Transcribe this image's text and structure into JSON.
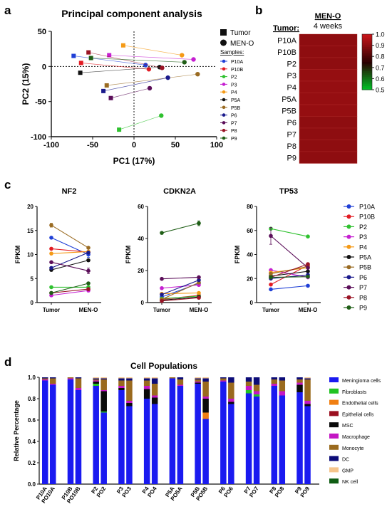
{
  "panel_labels": {
    "a": "a",
    "b": "b",
    "c": "c",
    "d": "d"
  },
  "colors": {
    "P10A": "#1f3fd6",
    "P10B": "#e21b23",
    "P2": "#2fc12f",
    "P3": "#c51fd1",
    "P4": "#f59a16",
    "P5A": "#111111",
    "P5B": "#9a6b22",
    "P6": "#1a1a8c",
    "P7": "#5b0e59",
    "P8": "#9a1425",
    "P9": "#1f5e16"
  },
  "chart_data": [
    {
      "type": "scatter",
      "title": "Principal component analysis",
      "xlabel": "PC1 (17%)",
      "ylabel": "PC2 (15%)",
      "xlim": [
        -100,
        100
      ],
      "ylim": [
        -100,
        50
      ],
      "xticks": [
        -100,
        -50,
        0,
        50,
        100
      ],
      "yticks": [
        -100,
        -50,
        0,
        50
      ],
      "legend_markers": {
        "tumor": "Tumor",
        "meno": "MEN-O"
      },
      "legend_title": "Samples:",
      "legend_placement": "right",
      "series": [
        {
          "name": "P10A",
          "tumor": [
            -73,
            15
          ],
          "meno": [
            14,
            2
          ]
        },
        {
          "name": "P10B",
          "tumor": [
            -64,
            5
          ],
          "meno": [
            18,
            -4
          ]
        },
        {
          "name": "P2",
          "tumor": [
            -18,
            -90
          ],
          "meno": [
            33,
            -70
          ]
        },
        {
          "name": "P3",
          "tumor": [
            -30,
            16
          ],
          "meno": [
            72,
            10
          ]
        },
        {
          "name": "P4",
          "tumor": [
            -13,
            30
          ],
          "meno": [
            58,
            16
          ]
        },
        {
          "name": "P5A",
          "tumor": [
            -65,
            -9
          ],
          "meno": [
            31,
            -1
          ]
        },
        {
          "name": "P5B",
          "tumor": [
            -33,
            -27
          ],
          "meno": [
            77,
            -11
          ]
        },
        {
          "name": "P6",
          "tumor": [
            -37,
            -35
          ],
          "meno": [
            41,
            -16
          ]
        },
        {
          "name": "P7",
          "tumor": [
            -28,
            -45
          ],
          "meno": [
            19,
            -31
          ]
        },
        {
          "name": "P8",
          "tumor": [
            -55,
            20
          ],
          "meno": [
            34,
            -2
          ]
        },
        {
          "name": "P9",
          "tumor": [
            -52,
            12
          ],
          "meno": [
            61,
            6
          ]
        }
      ]
    },
    {
      "type": "heatmap",
      "column_header": "MEN-O",
      "column_subheader": "4 weeks",
      "row_header": "Tumor:",
      "rows": [
        "P10A",
        "P10B",
        "P2",
        "P3",
        "P4",
        "P5A",
        "P5B",
        "P6",
        "P7",
        "P8",
        "P9"
      ],
      "values": [
        0.91,
        0.91,
        0.91,
        0.92,
        0.92,
        0.92,
        0.92,
        0.91,
        0.91,
        0.91,
        0.91
      ],
      "colorbar_ticks": [
        1.0,
        0.9,
        0.8,
        0.7,
        0.6,
        0.5
      ],
      "colorbar_tick_labels": [
        "1.0",
        "0.9",
        "0.8",
        "0.7",
        "0.6",
        "0.5"
      ],
      "range": [
        0.5,
        1.0
      ]
    },
    {
      "type": "line",
      "title": "NF2",
      "ylabel": "FPKM",
      "categories": [
        "Tumor",
        "MEN-O"
      ],
      "ylim": [
        0,
        20
      ],
      "yticks": [
        0,
        5,
        10,
        15,
        20
      ],
      "series": [
        {
          "name": "P10A",
          "values": [
            13.5,
            10.0
          ],
          "err": [
            0,
            0.6
          ]
        },
        {
          "name": "P10B",
          "values": [
            11.2,
            10.5
          ],
          "err": [
            0,
            0
          ]
        },
        {
          "name": "P2",
          "values": [
            3.2,
            3.2
          ],
          "err": [
            0,
            0
          ]
        },
        {
          "name": "P3",
          "values": [
            1.5,
            2.5
          ],
          "err": [
            0,
            0
          ]
        },
        {
          "name": "P4",
          "values": [
            10.2,
            10.6
          ],
          "err": [
            0,
            0
          ]
        },
        {
          "name": "P5A",
          "values": [
            6.8,
            8.8
          ],
          "err": [
            0,
            0
          ]
        },
        {
          "name": "P5B",
          "values": [
            16.1,
            11.4
          ],
          "err": [
            0.4,
            0
          ]
        },
        {
          "name": "P6",
          "values": [
            7.2,
            10.4
          ],
          "err": [
            0,
            0
          ]
        },
        {
          "name": "P7",
          "values": [
            8.4,
            6.6
          ],
          "err": [
            0,
            0.6
          ]
        },
        {
          "name": "P8",
          "values": [
            2.0,
            2.8
          ],
          "err": [
            0,
            0
          ]
        },
        {
          "name": "P9",
          "values": [
            2.0,
            4.0
          ],
          "err": [
            0,
            0
          ]
        }
      ]
    },
    {
      "type": "line",
      "title": "CDKN2A",
      "ylabel": "FPKM",
      "categories": [
        "Tumor",
        "MEN-O"
      ],
      "ylim": [
        0,
        60
      ],
      "yticks": [
        0,
        20,
        40,
        60
      ],
      "series": [
        {
          "name": "P10A",
          "values": [
            3.5,
            12.0
          ],
          "err": [
            0,
            0
          ]
        },
        {
          "name": "P10B",
          "values": [
            2.0,
            4.5
          ],
          "err": [
            0,
            0
          ]
        },
        {
          "name": "P2",
          "values": [
            2.5,
            4.0
          ],
          "err": [
            0,
            0
          ]
        },
        {
          "name": "P3",
          "values": [
            9.0,
            11.0
          ],
          "err": [
            0,
            0
          ]
        },
        {
          "name": "P4",
          "values": [
            5.5,
            6.0
          ],
          "err": [
            0,
            0
          ]
        },
        {
          "name": "P5A",
          "values": [
            1.5,
            3.5
          ],
          "err": [
            0,
            0
          ]
        },
        {
          "name": "P5B",
          "values": [
            2.0,
            12.5
          ],
          "err": [
            0,
            0
          ]
        },
        {
          "name": "P6",
          "values": [
            5.0,
            14.0
          ],
          "err": [
            0,
            0
          ]
        },
        {
          "name": "P7",
          "values": [
            14.8,
            15.8
          ],
          "err": [
            0,
            0
          ]
        },
        {
          "name": "P8",
          "values": [
            1.0,
            3.0
          ],
          "err": [
            0,
            0
          ]
        },
        {
          "name": "P9",
          "values": [
            43.5,
            49.5
          ],
          "err": [
            0,
            1.5
          ]
        }
      ]
    },
    {
      "type": "line",
      "title": "TP53",
      "ylabel": "FPKM",
      "categories": [
        "Tumor",
        "MEN-O"
      ],
      "ylim": [
        0,
        80
      ],
      "yticks": [
        0,
        20,
        40,
        60,
        80
      ],
      "series": [
        {
          "name": "P10A",
          "values": [
            11.0,
            14.0
          ],
          "err": [
            0,
            0
          ]
        },
        {
          "name": "P10B",
          "values": [
            15.0,
            31.0
          ],
          "err": [
            0,
            0
          ]
        },
        {
          "name": "P2",
          "values": [
            61.5,
            55.0
          ],
          "err": [
            0,
            1
          ]
        },
        {
          "name": "P3",
          "values": [
            27.0,
            21.0
          ],
          "err": [
            0,
            0
          ]
        },
        {
          "name": "P4",
          "values": [
            25.0,
            29.0
          ],
          "err": [
            0,
            0
          ]
        },
        {
          "name": "P5A",
          "values": [
            22.0,
            26.0
          ],
          "err": [
            0,
            0
          ]
        },
        {
          "name": "P5B",
          "values": [
            24.0,
            30.0
          ],
          "err": [
            0,
            0
          ]
        },
        {
          "name": "P6",
          "values": [
            20.0,
            23.0
          ],
          "err": [
            0,
            0
          ]
        },
        {
          "name": "P7",
          "values": [
            55.5,
            29.0
          ],
          "err": [
            7,
            0
          ]
        },
        {
          "name": "P8",
          "values": [
            21.0,
            32.0
          ],
          "err": [
            0,
            0
          ]
        },
        {
          "name": "P9",
          "values": [
            21.0,
            21.5
          ],
          "err": [
            0,
            0
          ]
        }
      ]
    },
    {
      "type": "bar",
      "stacked": true,
      "title": "Cell Populations",
      "ylabel": "Relative Percentage",
      "ylim": [
        0,
        1.0
      ],
      "yticks": [
        "0.0",
        "0.2",
        "0.4",
        "0.6",
        "0.8",
        "1.0"
      ],
      "legend_placement": "right",
      "components": [
        "Meningioma cells",
        "Fibroblasts",
        "Endothelial cells",
        "Epithelial cells",
        "MSC",
        "Macrophage",
        "Monocyte",
        "DC",
        "GMP",
        "NK cell"
      ],
      "component_colors": [
        "#1a1af0",
        "#22c322",
        "#f07f12",
        "#9b0f1f",
        "#0a0a0a",
        "#c417c4",
        "#9a6a1e",
        "#0c0c78",
        "#f5c58c",
        "#0f5d14"
      ],
      "groups": [
        {
          "categories": [
            "P10A",
            "PO10A"
          ],
          "bars": [
            [
              0.97,
              0,
              0,
              0,
              0,
              0.01,
              0.01,
              0.01,
              0,
              0
            ],
            [
              0.93,
              0,
              0,
              0,
              0,
              0.01,
              0.05,
              0.01,
              0,
              0
            ]
          ]
        },
        {
          "categories": [
            "P10B",
            "PO10B"
          ],
          "bars": [
            [
              0.98,
              0,
              0,
              0,
              0,
              0.01,
              0.01,
              0,
              0,
              0
            ],
            [
              0.88,
              0,
              0,
              0,
              0,
              0.02,
              0.09,
              0.01,
              0,
              0
            ]
          ]
        },
        {
          "categories": [
            "P2",
            "PO2"
          ],
          "bars": [
            [
              0.92,
              0.02,
              0,
              0,
              0.02,
              0.01,
              0.01,
              0.01,
              0.01,
              0
            ],
            [
              0.67,
              0.01,
              0,
              0,
              0.19,
              0.01,
              0.1,
              0.01,
              0.01,
              0
            ]
          ]
        },
        {
          "categories": [
            "P3",
            "PO3"
          ],
          "bars": [
            [
              0.88,
              0,
              0,
              0,
              0.02,
              0.02,
              0.05,
              0.02,
              0.01,
              0
            ],
            [
              0.73,
              0,
              0,
              0,
              0.03,
              0.02,
              0.19,
              0.02,
              0.01,
              0
            ]
          ]
        },
        {
          "categories": [
            "P4",
            "PO4"
          ],
          "bars": [
            [
              0.8,
              0,
              0,
              0,
              0.09,
              0.03,
              0.05,
              0.02,
              0.01,
              0
            ],
            [
              0.75,
              0,
              0,
              0,
              0.06,
              0.02,
              0.11,
              0.05,
              0.01,
              0
            ]
          ]
        },
        {
          "categories": [
            "P5A",
            "PO5A"
          ],
          "bars": [
            [
              0.99,
              0,
              0,
              0,
              0,
              0,
              0.01,
              0,
              0,
              0
            ],
            [
              0.92,
              0,
              0,
              0,
              0,
              0.01,
              0.05,
              0.02,
              0,
              0
            ]
          ]
        },
        {
          "categories": [
            "P5B",
            "PO5B"
          ],
          "bars": [
            [
              0.94,
              0,
              0,
              0,
              0.01,
              0.01,
              0.02,
              0.01,
              0.01,
              0
            ],
            [
              0.61,
              0,
              0.06,
              0,
              0.13,
              0.02,
              0.14,
              0.03,
              0.01,
              0
            ]
          ]
        },
        {
          "categories": [
            "P6",
            "PO6"
          ],
          "bars": [
            [
              0.96,
              0,
              0,
              0,
              0,
              0.01,
              0.02,
              0.01,
              0,
              0
            ],
            [
              0.75,
              0,
              0,
              0,
              0.02,
              0.03,
              0.15,
              0.05,
              0,
              0
            ]
          ]
        },
        {
          "categories": [
            "P7",
            "PO7"
          ],
          "bars": [
            [
              0.85,
              0.03,
              0,
              0,
              0,
              0.04,
              0.04,
              0.04,
              0,
              0
            ],
            [
              0.82,
              0.02,
              0,
              0,
              0,
              0.03,
              0.06,
              0.07,
              0,
              0
            ]
          ]
        },
        {
          "categories": [
            "P8",
            "PO8"
          ],
          "bars": [
            [
              0.92,
              0,
              0,
              0,
              0,
              0.02,
              0.04,
              0.02,
              0,
              0
            ],
            [
              0.83,
              0,
              0,
              0,
              0,
              0.04,
              0.1,
              0.03,
              0,
              0
            ]
          ]
        },
        {
          "categories": [
            "P9",
            "PO9"
          ],
          "bars": [
            [
              0.86,
              0,
              0,
              0,
              0.07,
              0.02,
              0.03,
              0.02,
              0,
              0
            ],
            [
              0.73,
              0,
              0,
              0,
              0.02,
              0.03,
              0.2,
              0.01,
              0.01,
              0
            ]
          ]
        }
      ]
    }
  ]
}
